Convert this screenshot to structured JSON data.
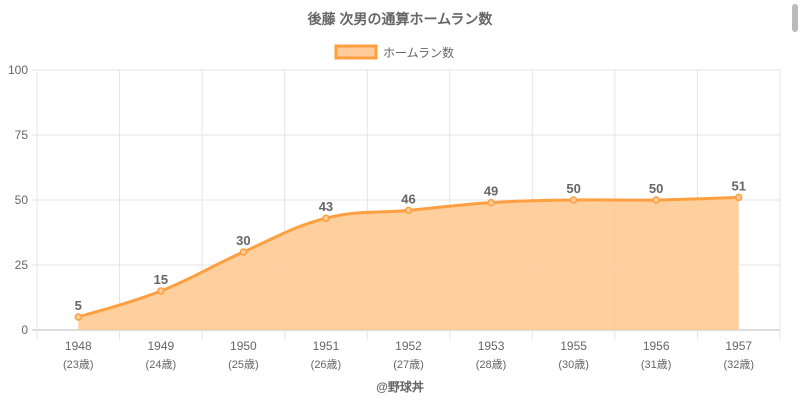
{
  "chart_data": {
    "type": "line",
    "title": "後藤 次男の通算ホームラン数",
    "legend": [
      "ホームラン数"
    ],
    "legend_placement": "top",
    "categories": [
      "1948",
      "1949",
      "1950",
      "1951",
      "1952",
      "1953",
      "1955",
      "1956",
      "1957"
    ],
    "sublabels": [
      "(23歳)",
      "(24歳)",
      "(25歳)",
      "(26歳)",
      "(27歳)",
      "(28歳)",
      "(30歳)",
      "(31歳)",
      "(32歳)"
    ],
    "series": [
      {
        "name": "ホームラン数",
        "values": [
          5,
          15,
          30,
          43,
          46,
          49,
          50,
          50,
          51
        ]
      }
    ],
    "ylim": [
      0,
      100
    ],
    "yticks": [
      0,
      25,
      50,
      75,
      100
    ],
    "grid": true,
    "fill": true,
    "colors": {
      "line": "#ff9f40",
      "fill": "#ffcc99"
    },
    "credit": "@野球丼"
  }
}
